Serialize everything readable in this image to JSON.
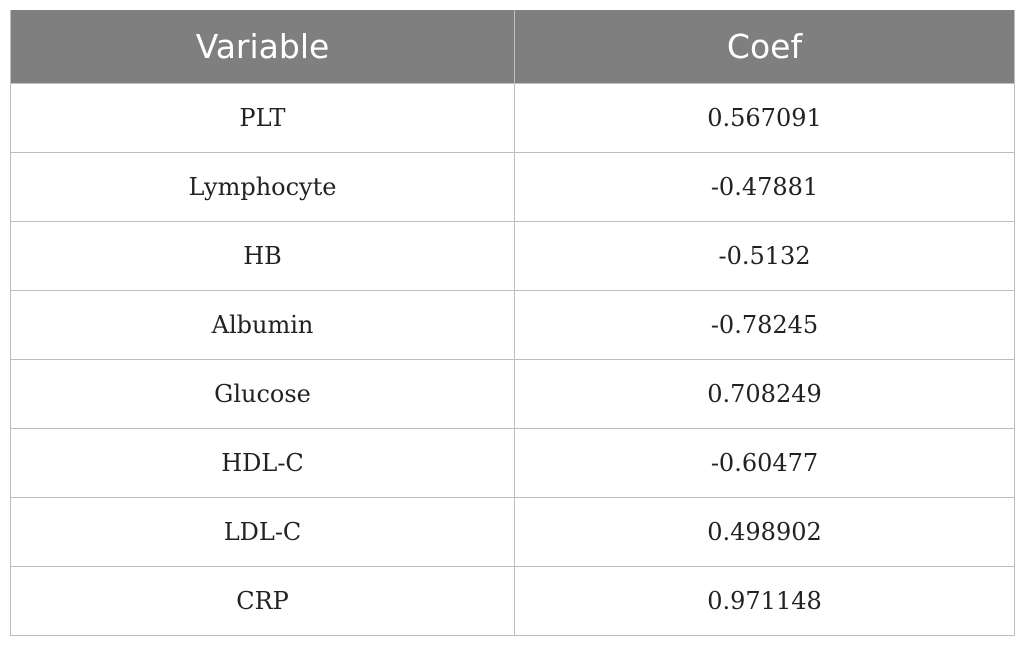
{
  "table": {
    "headers": [
      "Variable",
      "Coef"
    ],
    "rows": [
      {
        "variable": "PLT",
        "coef": "0.567091"
      },
      {
        "variable": "Lymphocyte",
        "coef": "-0.47881"
      },
      {
        "variable": "HB",
        "coef": "-0.5132"
      },
      {
        "variable": "Albumin",
        "coef": "-0.78245"
      },
      {
        "variable": "Glucose",
        "coef": "0.708249"
      },
      {
        "variable": "HDL-C",
        "coef": "-0.60477"
      },
      {
        "variable": "LDL-C",
        "coef": "0.498902"
      },
      {
        "variable": "CRP",
        "coef": "0.971148"
      }
    ]
  },
  "colors": {
    "header_background": "#7f7f7f",
    "header_text": "#ffffff",
    "grid_line": "#bdbdbd"
  }
}
